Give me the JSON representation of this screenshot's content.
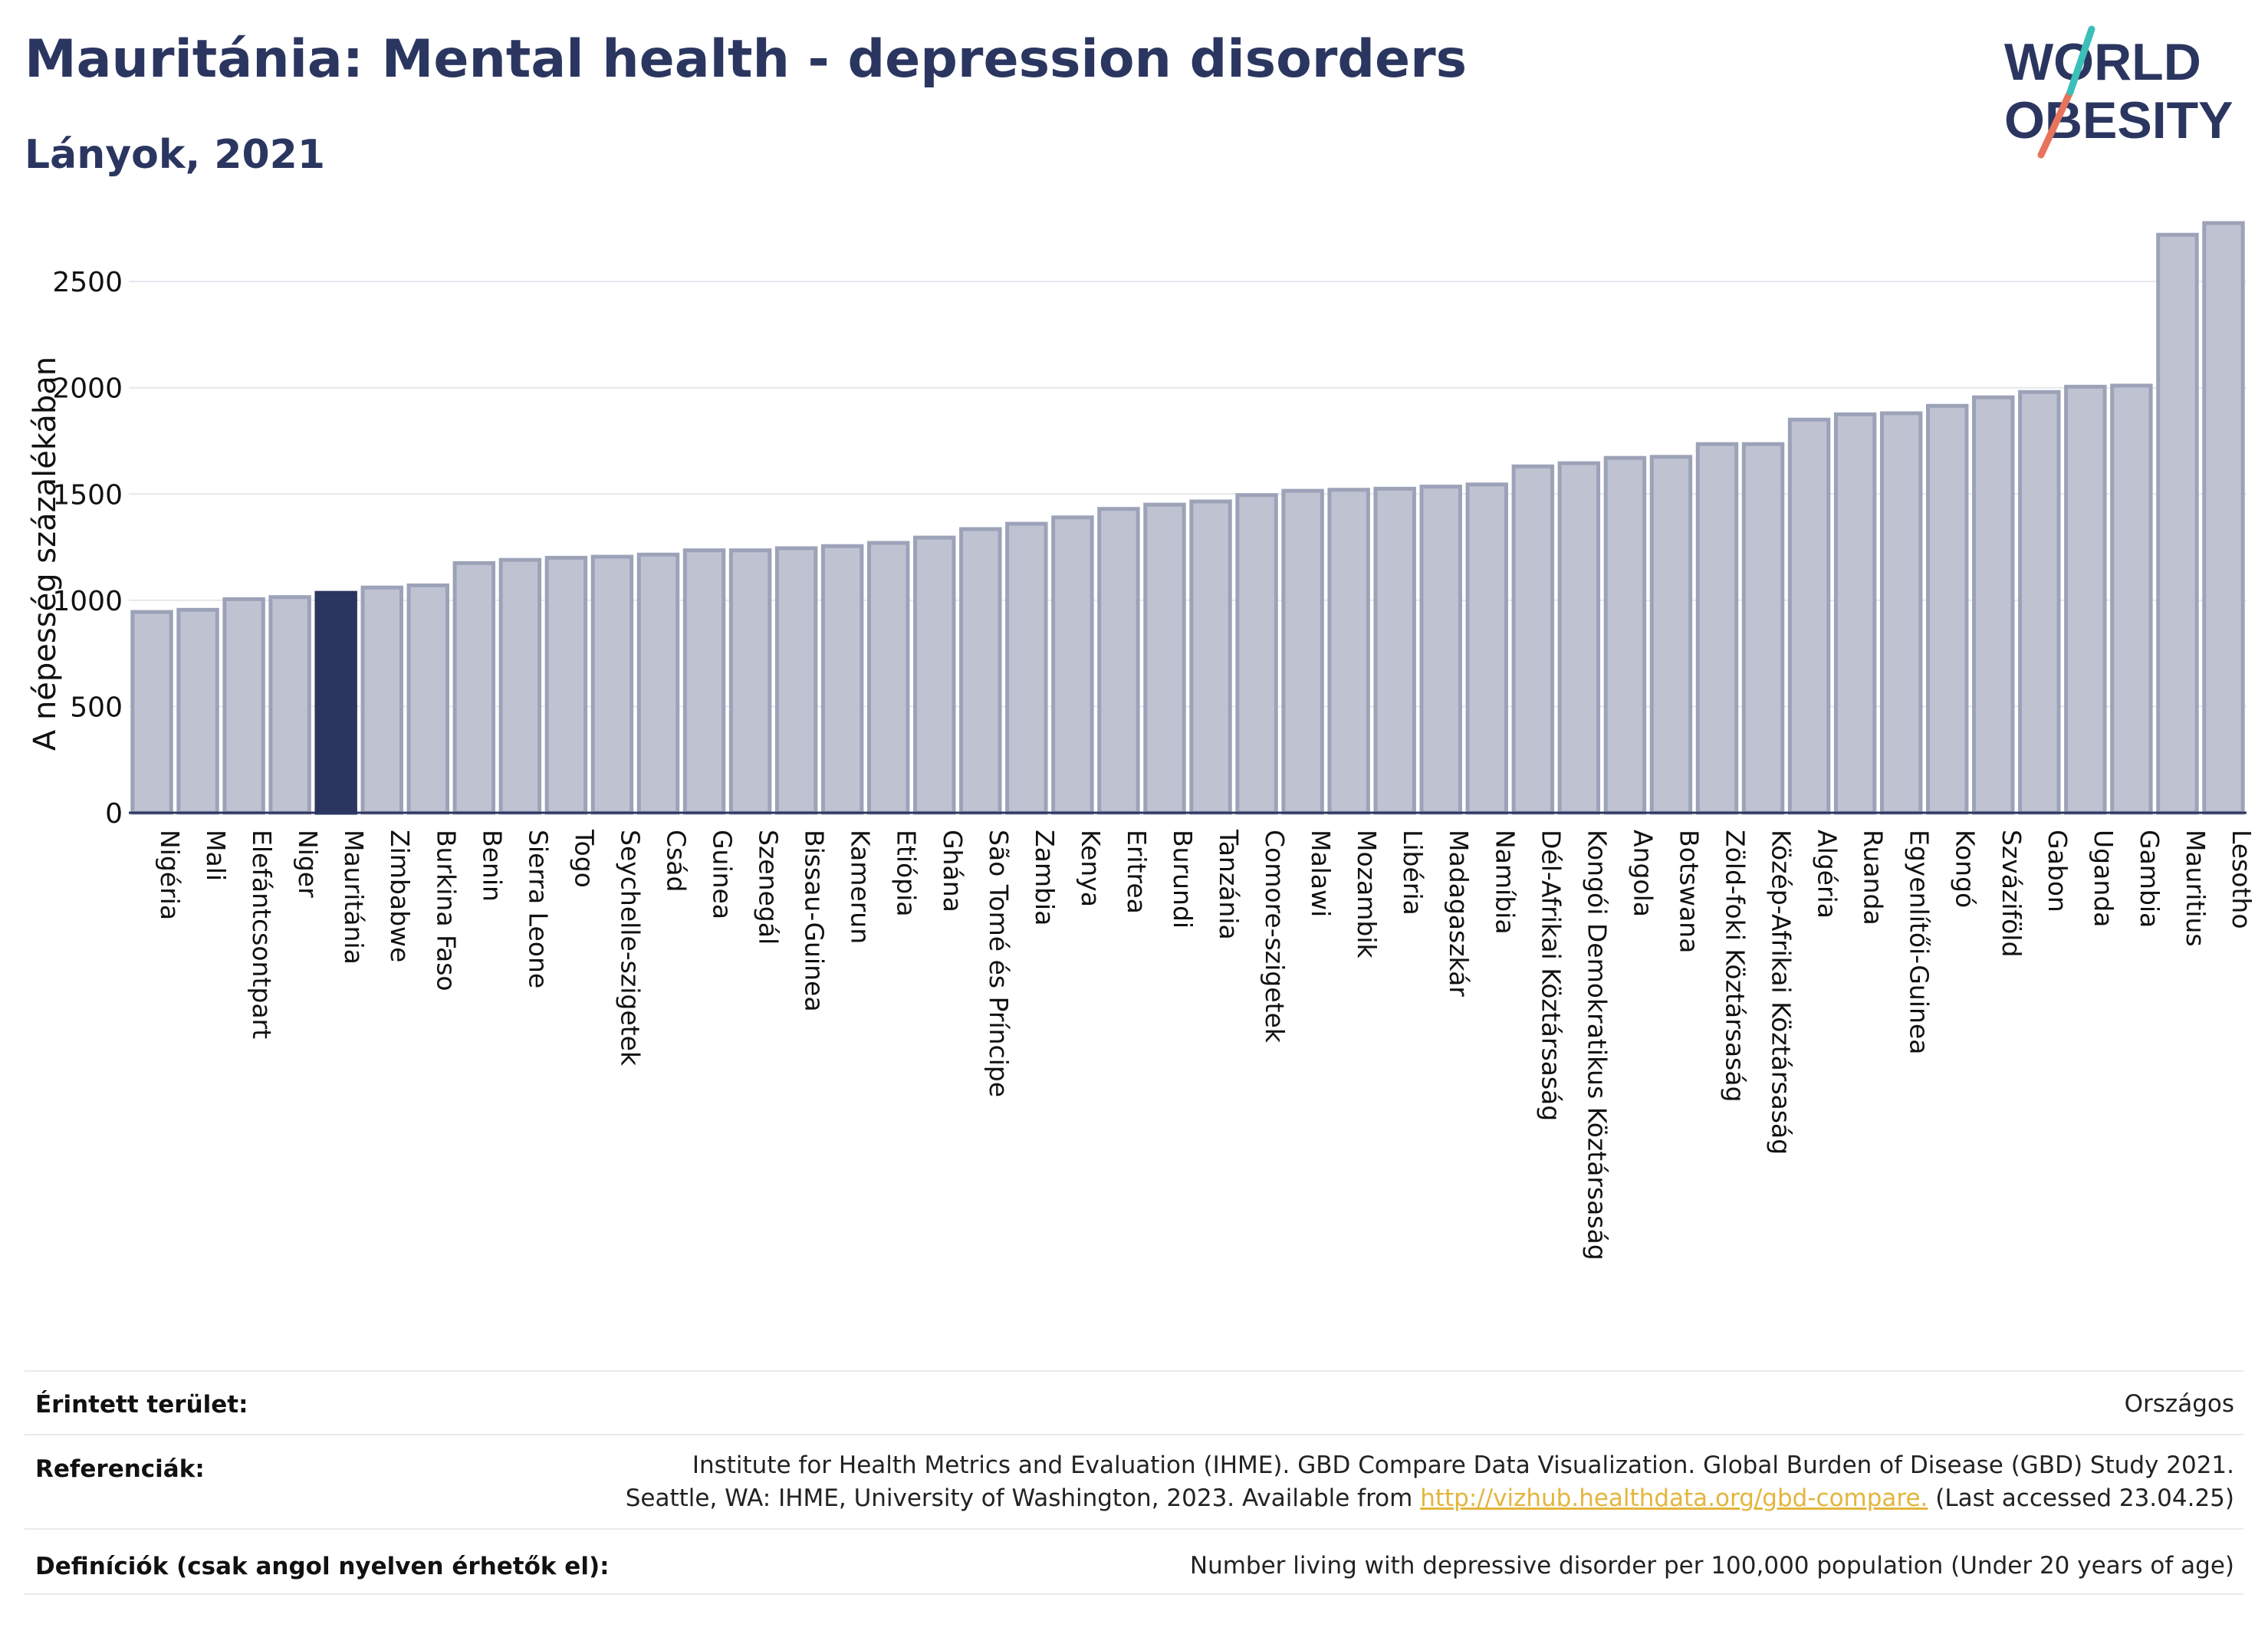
{
  "header": {
    "title": "Mauritánia: Mental health - depression disorders",
    "subtitle": "Lányok, 2021"
  },
  "logo": {
    "line1": "WORLD",
    "line2": "OBESITY"
  },
  "chart_data": {
    "type": "bar",
    "title": "Mauritánia: Mental health - depression disorders",
    "subtitle": "Lányok, 2021",
    "ylabel": "A népesség százalékában",
    "ylim": [
      0,
      2800
    ],
    "yticks": [
      0,
      500,
      1000,
      1500,
      2000,
      2500
    ],
    "grid": true,
    "highlight": "Mauritánia",
    "colors": {
      "bar": "#bfc3d1",
      "bar_edge": "#9ca2b8",
      "highlight": "#2b3660"
    },
    "categories": [
      "Nigéria",
      "Mali",
      "Elefántcsontpart",
      "Niger",
      "Mauritánia",
      "Zimbabwe",
      "Burkina Faso",
      "Benin",
      "Sierra Leone",
      "Togo",
      "Seychelle-szigetek",
      "Csád",
      "Guinea",
      "Szenegál",
      "Bissau-Guinea",
      "Kamerun",
      "Etiópia",
      "Ghána",
      "São Tomé és Príncipe",
      "Zambia",
      "Kenya",
      "Eritrea",
      "Burundi",
      "Tanzánia",
      "Comore-szigetek",
      "Malawi",
      "Mozambik",
      "Libéria",
      "Madagaszkár",
      "Namíbia",
      "Dél-Afrikai Köztársaság",
      "Kongói Demokratikus Köztársaság",
      "Angola",
      "Botswana",
      "Zöld-foki Köztársaság",
      "Közép-Afrikai Köztársaság",
      "Algéria",
      "Ruanda",
      "Egyenlítői-Guinea",
      "Kongó",
      "Szváziföld",
      "Gabon",
      "Uganda",
      "Gambia",
      "Mauritius",
      "Lesotho"
    ],
    "values": [
      945,
      955,
      1005,
      1015,
      1035,
      1060,
      1070,
      1175,
      1190,
      1200,
      1205,
      1215,
      1235,
      1235,
      1245,
      1255,
      1270,
      1295,
      1335,
      1360,
      1390,
      1430,
      1450,
      1465,
      1495,
      1515,
      1520,
      1525,
      1535,
      1545,
      1630,
      1645,
      1670,
      1675,
      1735,
      1735,
      1850,
      1875,
      1880,
      1915,
      1955,
      1980,
      2005,
      2010,
      2720,
      2775
    ]
  },
  "footer": {
    "area_label": "Érintett terület:",
    "area_value": "Országos",
    "ref_label": "Referenciák:",
    "ref_line1": "Institute for Health Metrics and Evaluation (IHME). GBD Compare Data Visualization. Global Burden of Disease (GBD) Study 2021.",
    "ref_line2_pre": "Seattle, WA: IHME, University of Washington, 2023. Available from ",
    "ref_link": "http://vizhub.healthdata.org/gbd-compare.",
    "ref_line2_post": " (Last accessed 23.04.25)",
    "def_label": "Definíciók (csak angol nyelven érhetők el):",
    "def_value": "Number living with depressive disorder per 100,000 population (Under 20 years of age)"
  }
}
